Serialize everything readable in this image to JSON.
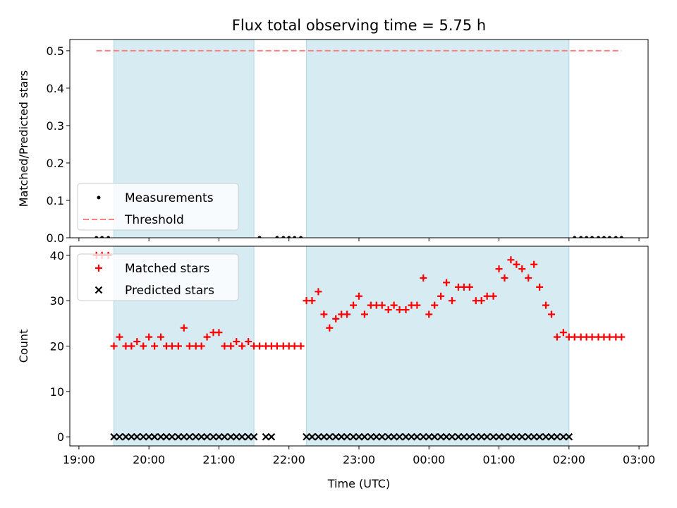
{
  "chart_data": {
    "title": "Flux total observing time = 5.75 h",
    "xlabel": "Time (UTC)",
    "x_ticks": [
      "19:00",
      "20:00",
      "21:00",
      "22:00",
      "23:00",
      "00:00",
      "01:00",
      "02:00",
      "03:00"
    ],
    "x_tick_hours": [
      19,
      20,
      21,
      22,
      23,
      24,
      25,
      26,
      27
    ],
    "xlim_hours": [
      18.87,
      27.13
    ],
    "shaded_intervals_hours": [
      [
        19.5,
        21.5
      ],
      [
        22.25,
        26.0
      ]
    ],
    "shade_color": "#add8e6",
    "panels": [
      {
        "type": "scatter",
        "ylabel": "Matched/Predicted stars",
        "ylim": [
          0,
          0.53
        ],
        "y_ticks": [
          0.0,
          0.1,
          0.2,
          0.3,
          0.4,
          0.5
        ],
        "y_tick_labels": [
          "0.0",
          "0.1",
          "0.2",
          "0.3",
          "0.4",
          "0.5"
        ],
        "legend_position": "lower-left",
        "series": [
          {
            "name": "Measurements",
            "marker": "dot",
            "color": "#000000",
            "x": [
              19.25,
              19.33,
              19.42,
              21.58,
              21.83,
              21.92,
              22.0,
              22.08,
              22.17,
              26.08,
              26.17,
              26.25,
              26.33,
              26.42,
              26.5,
              26.58,
              26.67,
              26.75
            ],
            "y": [
              0,
              0,
              0,
              0,
              0,
              0,
              0,
              0,
              0,
              0,
              0,
              0,
              0,
              0,
              0,
              0,
              0,
              0
            ]
          },
          {
            "name": "Threshold",
            "marker": "dashed-line",
            "color": "#ff7f7f",
            "x": [
              19.25,
              26.75
            ],
            "y": [
              0.5,
              0.5
            ]
          }
        ]
      },
      {
        "type": "scatter",
        "ylabel": "Count",
        "ylim": [
          -2,
          42
        ],
        "y_ticks": [
          0,
          10,
          20,
          30,
          40
        ],
        "y_tick_labels": [
          "0",
          "10",
          "20",
          "30",
          "40"
        ],
        "legend_position": "upper-left",
        "series": [
          {
            "name": "Matched stars",
            "marker": "plus",
            "color": "#ff0000",
            "x": [
              19.25,
              19.33,
              19.42,
              19.5,
              19.58,
              19.67,
              19.75,
              19.83,
              19.92,
              20.0,
              20.08,
              20.17,
              20.25,
              20.33,
              20.42,
              20.5,
              20.58,
              20.67,
              20.75,
              20.83,
              20.92,
              21.0,
              21.08,
              21.17,
              21.25,
              21.33,
              21.42,
              21.5,
              21.58,
              21.67,
              21.75,
              21.83,
              21.92,
              22.0,
              22.08,
              22.17,
              22.25,
              22.33,
              22.42,
              22.5,
              22.58,
              22.67,
              22.75,
              22.83,
              22.92,
              23.0,
              23.08,
              23.17,
              23.25,
              23.33,
              23.42,
              23.5,
              23.58,
              23.67,
              23.75,
              23.83,
              23.92,
              24.0,
              24.08,
              24.17,
              24.25,
              24.33,
              24.42,
              24.5,
              24.58,
              24.67,
              24.75,
              24.83,
              24.92,
              25.0,
              25.08,
              25.17,
              25.25,
              25.33,
              25.42,
              25.5,
              25.58,
              25.67,
              25.75,
              25.83,
              25.92,
              26.0,
              26.08,
              26.17,
              26.25,
              26.33,
              26.42,
              26.5,
              26.58,
              26.67,
              26.75
            ],
            "y": [
              40,
              40,
              40,
              20,
              22,
              20,
              20,
              21,
              20,
              22,
              20,
              22,
              20,
              20,
              20,
              24,
              20,
              20,
              20,
              22,
              23,
              23,
              20,
              20,
              21,
              20,
              21,
              20,
              20,
              20,
              20,
              20,
              20,
              20,
              20,
              20,
              30,
              30,
              32,
              27,
              24,
              26,
              27,
              27,
              29,
              31,
              27,
              29,
              29,
              29,
              28,
              29,
              28,
              28,
              29,
              29,
              35,
              27,
              29,
              31,
              34,
              30,
              33,
              33,
              33,
              30,
              30,
              31,
              31,
              37,
              35,
              39,
              38,
              37,
              35,
              38,
              33,
              29,
              27,
              22,
              23,
              22,
              22,
              22,
              22,
              22,
              22,
              22,
              22,
              22,
              22
            ]
          },
          {
            "name": "Predicted stars",
            "marker": "x",
            "color": "#000000",
            "x": [
              19.5,
              19.58,
              19.67,
              19.75,
              19.83,
              19.92,
              20.0,
              20.08,
              20.17,
              20.25,
              20.33,
              20.42,
              20.5,
              20.58,
              20.67,
              20.75,
              20.83,
              20.92,
              21.0,
              21.08,
              21.17,
              21.25,
              21.33,
              21.42,
              21.5,
              21.67,
              21.75,
              22.25,
              22.33,
              22.42,
              22.5,
              22.58,
              22.67,
              22.75,
              22.83,
              22.92,
              23.0,
              23.08,
              23.17,
              23.25,
              23.33,
              23.42,
              23.5,
              23.58,
              23.67,
              23.75,
              23.83,
              23.92,
              24.0,
              24.08,
              24.17,
              24.25,
              24.33,
              24.42,
              24.5,
              24.58,
              24.67,
              24.75,
              24.83,
              24.92,
              25.0,
              25.08,
              25.17,
              25.25,
              25.33,
              25.42,
              25.5,
              25.58,
              25.67,
              25.75,
              25.83,
              25.92,
              26.0
            ],
            "y": [
              0,
              0,
              0,
              0,
              0,
              0,
              0,
              0,
              0,
              0,
              0,
              0,
              0,
              0,
              0,
              0,
              0,
              0,
              0,
              0,
              0,
              0,
              0,
              0,
              0,
              0,
              0,
              0,
              0,
              0,
              0,
              0,
              0,
              0,
              0,
              0,
              0,
              0,
              0,
              0,
              0,
              0,
              0,
              0,
              0,
              0,
              0,
              0,
              0,
              0,
              0,
              0,
              0,
              0,
              0,
              0,
              0,
              0,
              0,
              0,
              0,
              0,
              0,
              0,
              0,
              0,
              0,
              0,
              0,
              0,
              0,
              0,
              0
            ]
          }
        ]
      }
    ]
  }
}
